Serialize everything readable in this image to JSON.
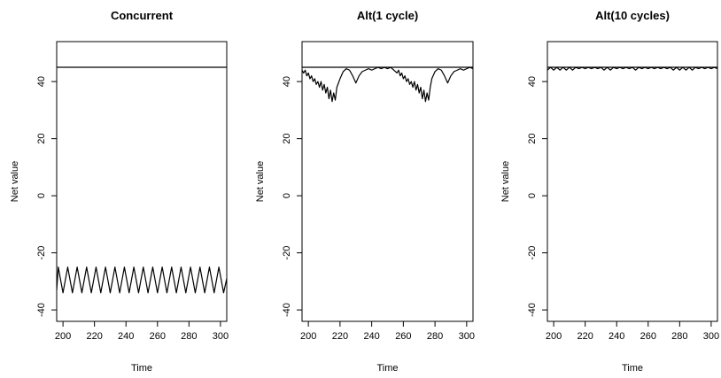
{
  "chart_data": [
    {
      "type": "line",
      "title": "Concurrent",
      "xlabel": "Time",
      "ylabel": "Net value",
      "xlim": [
        196,
        304
      ],
      "ylim": [
        -44,
        54
      ],
      "x_ticks": [
        200,
        220,
        240,
        260,
        280,
        300
      ],
      "y_ticks": [
        -40,
        -20,
        0,
        20,
        40
      ],
      "grid": false,
      "series": [
        {
          "x": [
            196,
            197,
            200,
            203,
            206,
            209,
            212,
            215,
            218,
            221,
            224,
            227,
            230,
            233,
            236,
            239,
            242,
            245,
            248,
            251,
            254,
            257,
            260,
            263,
            266,
            269,
            272,
            275,
            278,
            281,
            284,
            287,
            290,
            293,
            296,
            299,
            302,
            304
          ],
          "values": [
            -33,
            -25,
            -34,
            -25,
            -34,
            -25,
            -34,
            -25,
            -34,
            -25,
            -34,
            -25,
            -34,
            -25,
            -34,
            -25,
            -34,
            -25,
            -34,
            -25,
            -34,
            -25,
            -34,
            -25,
            -34,
            -25,
            -34,
            -25,
            -34,
            -25,
            -34,
            -25,
            -34,
            -25,
            -34,
            -25,
            -34,
            -29
          ]
        },
        {
          "x": [
            196,
            304
          ],
          "values": [
            45,
            45
          ]
        }
      ]
    },
    {
      "type": "line",
      "title": "Alt(1 cycle)",
      "xlabel": "Time",
      "ylabel": "Net value",
      "xlim": [
        196,
        304
      ],
      "ylim": [
        -44,
        54
      ],
      "x_ticks": [
        200,
        220,
        240,
        260,
        280,
        300
      ],
      "y_ticks": [
        -40,
        -20,
        0,
        20,
        40
      ],
      "grid": false,
      "series": [
        {
          "x": [
            196,
            197,
            198,
            199,
            200,
            201,
            202,
            203,
            204,
            205,
            206,
            207,
            208,
            209,
            210,
            211,
            212,
            213,
            214,
            215,
            216,
            217,
            218,
            220,
            222,
            224,
            226,
            228,
            230,
            232,
            234,
            236,
            238,
            240,
            242,
            244,
            246,
            248,
            250,
            252,
            254,
            256,
            257,
            258,
            259,
            260,
            261,
            262,
            263,
            264,
            265,
            266,
            267,
            268,
            269,
            270,
            271,
            272,
            273,
            274,
            275,
            276,
            277,
            278,
            280,
            282,
            284,
            286,
            288,
            290,
            292,
            294,
            296,
            298,
            300,
            302,
            304
          ],
          "values": [
            44,
            43,
            44,
            42,
            43,
            41,
            42,
            40,
            41,
            39,
            40,
            38,
            40,
            37,
            39,
            36,
            38,
            34,
            37,
            33,
            36,
            33.5,
            38,
            41,
            43.5,
            44.5,
            44,
            42,
            39.5,
            42,
            43.5,
            44,
            44.5,
            44,
            44.5,
            45,
            44.5,
            45,
            44.5,
            45,
            44,
            43,
            44,
            42,
            43,
            41,
            42,
            40,
            41,
            39,
            40,
            38,
            40,
            37,
            39,
            36,
            38,
            34,
            37,
            33,
            36,
            33.5,
            38,
            41,
            43.5,
            44.5,
            44,
            42,
            39.5,
            42,
            43.5,
            44,
            44.5,
            44,
            44.5,
            45,
            44.5
          ]
        },
        {
          "x": [
            196,
            304
          ],
          "values": [
            45,
            45
          ]
        }
      ]
    },
    {
      "type": "line",
      "title": "Alt(10 cycles)",
      "xlabel": "Time",
      "ylabel": "Net value",
      "xlim": [
        196,
        304
      ],
      "ylim": [
        -44,
        54
      ],
      "x_ticks": [
        200,
        220,
        240,
        260,
        280,
        300
      ],
      "y_ticks": [
        -40,
        -20,
        0,
        20,
        40
      ],
      "grid": false,
      "series": [
        {
          "x": [
            196,
            198,
            200,
            202,
            204,
            206,
            208,
            210,
            212,
            214,
            216,
            218,
            220,
            222,
            224,
            226,
            228,
            230,
            232,
            234,
            236,
            238,
            240,
            242,
            244,
            246,
            248,
            250,
            252,
            254,
            256,
            258,
            260,
            262,
            264,
            266,
            268,
            270,
            272,
            274,
            276,
            278,
            280,
            282,
            284,
            286,
            288,
            290,
            292,
            294,
            296,
            298,
            300,
            302,
            304
          ],
          "values": [
            44,
            45,
            44,
            45,
            44,
            45,
            44,
            45,
            44,
            45,
            44.5,
            45,
            44.5,
            45,
            44.5,
            45,
            44.5,
            45,
            44,
            45,
            44,
            45,
            44.5,
            45,
            44.5,
            45,
            44.5,
            45,
            44,
            45,
            44.5,
            45,
            44.5,
            45,
            44.5,
            45,
            44.5,
            45,
            44.5,
            45,
            44,
            45,
            44,
            45,
            44,
            45,
            44,
            45,
            44.5,
            45,
            44.5,
            45,
            44.5,
            45,
            44.5
          ]
        },
        {
          "x": [
            196,
            304
          ],
          "values": [
            45,
            45
          ]
        }
      ]
    }
  ]
}
